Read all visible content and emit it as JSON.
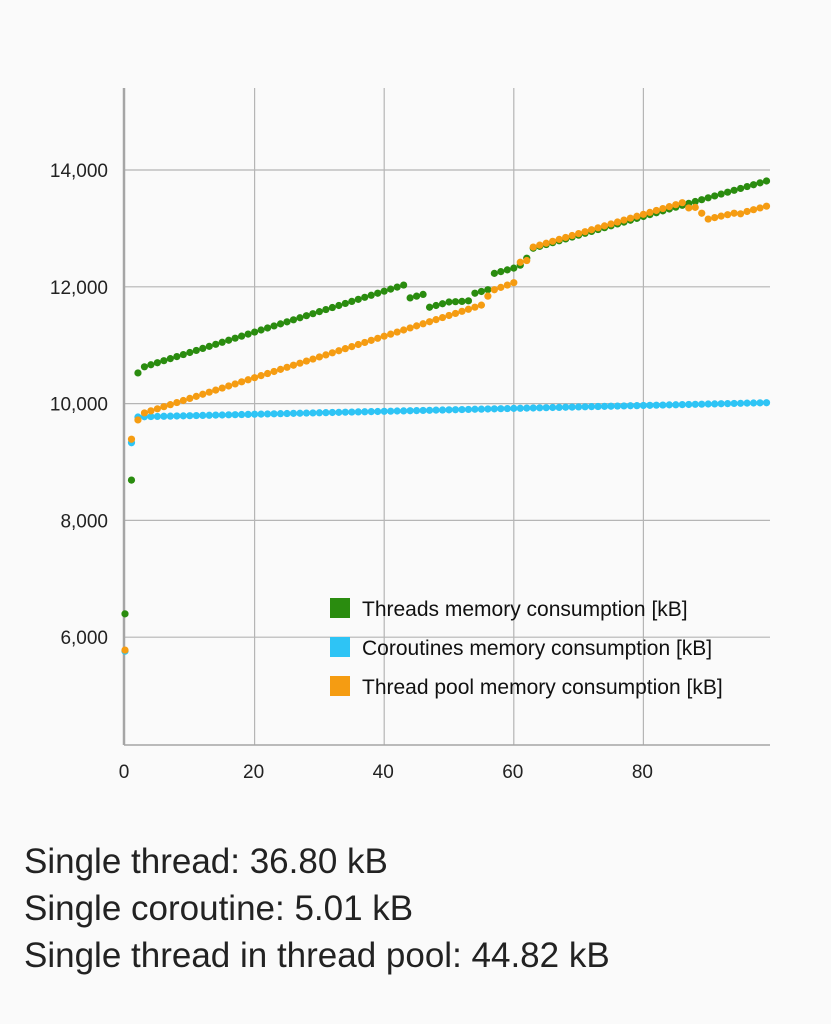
{
  "chart_data": {
    "type": "scatter",
    "title": "",
    "xlabel": "",
    "ylabel": "",
    "xlim": [
      0,
      99.5
    ],
    "ylim": [
      4150,
      15400
    ],
    "x_ticks": [
      0,
      20,
      40,
      60,
      80
    ],
    "x_tick_labels": [
      "0",
      "20",
      "40",
      "60",
      "80"
    ],
    "y_ticks": [
      6000,
      8000,
      10000,
      12000,
      14000
    ],
    "y_tick_labels": [
      "6,000",
      "8,000",
      "10,000",
      "12,000",
      "14,000"
    ],
    "grid": true,
    "legend_position": "bottom-right",
    "series": [
      {
        "name": "Threads memory consumption [kB]",
        "color": "#2a8c0f",
        "values": [
          6400,
          8690,
          10525,
          10630,
          10665,
          10700,
          10735,
          10770,
          10805,
          10840,
          10875,
          10910,
          10945,
          10980,
          11015,
          11050,
          11085,
          11120,
          11155,
          11190,
          11225,
          11260,
          11295,
          11330,
          11365,
          11400,
          11435,
          11470,
          11505,
          11540,
          11575,
          11610,
          11645,
          11680,
          11715,
          11750,
          11785,
          11820,
          11855,
          11890,
          11925,
          11960,
          11995,
          12030,
          11810,
          11840,
          11870,
          11650,
          11680,
          11710,
          11740,
          11745,
          11750,
          11760,
          11890,
          11920,
          11950,
          12230,
          12260,
          12290,
          12320,
          12370,
          12490,
          12660,
          12692,
          12724,
          12756,
          12788,
          12820,
          12852,
          12884,
          12916,
          12948,
          12980,
          13012,
          13044,
          13076,
          13108,
          13140,
          13172,
          13204,
          13236,
          13268,
          13300,
          13332,
          13364,
          13396,
          13428,
          13460,
          13492,
          13524,
          13556,
          13588,
          13620,
          13652,
          13684,
          13716,
          13748,
          13780,
          13812
        ]
      },
      {
        "name": "Coroutines memory consumption [kB]",
        "color": "#2ec4f5",
        "values": [
          5760,
          9330,
          9770,
          9775,
          9778,
          9780,
          9783,
          9785,
          9788,
          9790,
          9793,
          9795,
          9798,
          9800,
          9803,
          9805,
          9808,
          9810,
          9813,
          9815,
          9818,
          9820,
          9823,
          9825,
          9828,
          9830,
          9833,
          9835,
          9838,
          9840,
          9843,
          9845,
          9848,
          9850,
          9853,
          9855,
          9858,
          9860,
          9863,
          9865,
          9868,
          9870,
          9873,
          9875,
          9878,
          9880,
          9883,
          9885,
          9888,
          9890,
          9893,
          9895,
          9898,
          9900,
          9903,
          9905,
          9908,
          9910,
          9913,
          9915,
          9918,
          9920,
          9923,
          9925,
          9928,
          9930,
          9933,
          9935,
          9938,
          9940,
          9943,
          9945,
          9948,
          9950,
          9953,
          9955,
          9958,
          9960,
          9963,
          9965,
          9968,
          9970,
          9973,
          9975,
          9978,
          9980,
          9983,
          9985,
          9988,
          9990,
          9993,
          9995,
          9998,
          10000,
          10003,
          10005,
          10008,
          10010,
          10013,
          10015
        ]
      },
      {
        "name": "Thread pool memory consumption [kB]",
        "color": "#f59c12",
        "values": [
          5780,
          9390,
          9720,
          9840,
          9876,
          9911,
          9947,
          9982,
          10018,
          10053,
          10089,
          10124,
          10160,
          10195,
          10231,
          10266,
          10302,
          10337,
          10373,
          10408,
          10444,
          10479,
          10515,
          10550,
          10586,
          10621,
          10657,
          10692,
          10728,
          10763,
          10799,
          10834,
          10870,
          10905,
          10941,
          10976,
          11012,
          11047,
          11083,
          11118,
          11154,
          11189,
          11225,
          11260,
          11296,
          11331,
          11367,
          11402,
          11438,
          11473,
          11509,
          11544,
          11580,
          11615,
          11651,
          11686,
          11840,
          11950,
          11990,
          12030,
          12070,
          12420,
          12450,
          12680,
          12713,
          12746,
          12779,
          12812,
          12845,
          12878,
          12911,
          12944,
          12977,
          13010,
          13043,
          13076,
          13109,
          13142,
          13175,
          13208,
          13241,
          13274,
          13307,
          13340,
          13373,
          13406,
          13440,
          13350,
          13360,
          13260,
          13160,
          13185,
          13210,
          13235,
          13260,
          13250,
          13290,
          13320,
          13350,
          13380
        ]
      }
    ]
  },
  "stats": {
    "single_thread": "Single thread: 36.80 kB",
    "single_coroutine": "Single coroutine: 5.01 kB",
    "single_thread_pool": "Single thread in thread pool: 44.82 kB"
  }
}
